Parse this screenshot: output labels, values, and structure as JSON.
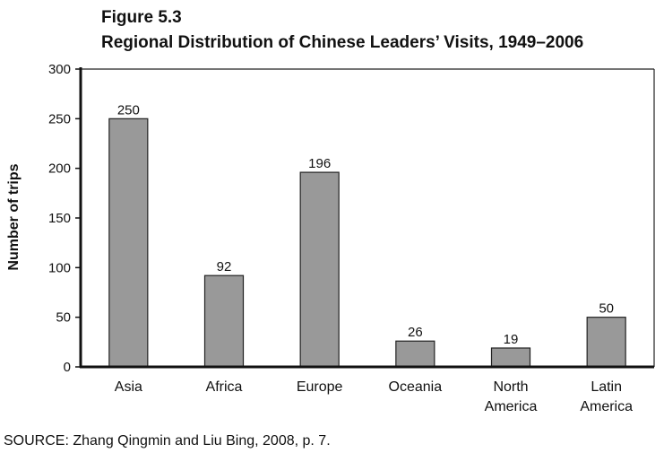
{
  "figure": {
    "label": "Figure 5.3",
    "title": "Regional Distribution of Chinese Leaders’ Visits, 1949–2006",
    "source": "SOURCE: Zhang Qingmin and Liu Bing, 2008, p. 7."
  },
  "chart_data": {
    "type": "bar",
    "title": "Regional Distribution of Chinese Leaders’ Visits, 1949–2006",
    "xlabel": "",
    "ylabel": "Number of trips",
    "categories": [
      [
        "Asia"
      ],
      [
        "Africa"
      ],
      [
        "Europe"
      ],
      [
        "Oceania"
      ],
      [
        "North",
        "America"
      ],
      [
        "Latin",
        "America"
      ]
    ],
    "values": [
      250,
      92,
      196,
      26,
      19,
      50
    ],
    "ylim": [
      0,
      300
    ],
    "yticks": [
      0,
      50,
      100,
      150,
      200,
      250,
      300
    ],
    "grid": false,
    "bar_color": "#999999",
    "bar_outline": "#222222"
  }
}
